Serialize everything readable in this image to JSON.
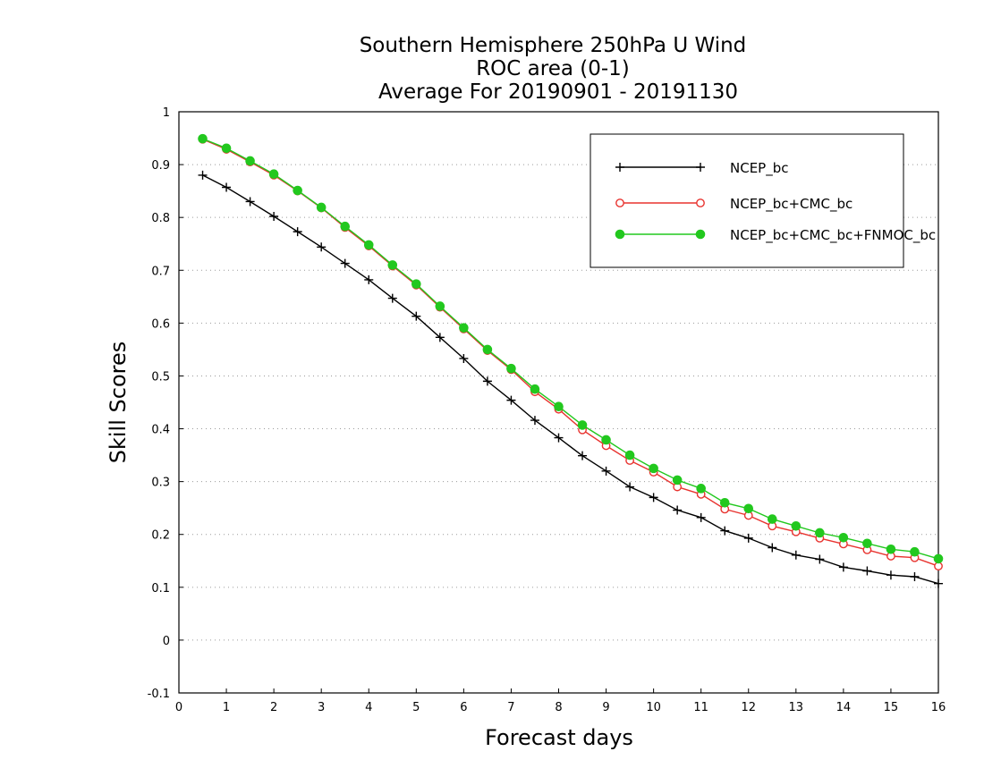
{
  "chart_data": {
    "type": "line",
    "title_lines": [
      "Southern Hemisphere 250hPa U Wind",
      "ROC area (0-1)",
      "Average For 20190901 - 20191130"
    ],
    "xlabel": "Forecast days",
    "ylabel": "Skill Scores",
    "xlim": [
      0,
      16
    ],
    "ylim": [
      -0.1,
      1
    ],
    "xticks": [
      "0",
      "1",
      "2",
      "3",
      "4",
      "5",
      "6",
      "7",
      "8",
      "9",
      "10",
      "11",
      "12",
      "13",
      "14",
      "15",
      "16"
    ],
    "yticks": [
      "-0.1",
      "0",
      "0.1",
      "0.2",
      "0.3",
      "0.4",
      "0.5",
      "0.6",
      "0.7",
      "0.8",
      "0.9",
      "1"
    ],
    "grid": "horizontal dotted",
    "legend_position": "top-right",
    "x": [
      0.5,
      1,
      1.5,
      2,
      2.5,
      3,
      3.5,
      4,
      4.5,
      5,
      5.5,
      6,
      6.5,
      7,
      7.5,
      8,
      8.5,
      9,
      9.5,
      10,
      10.5,
      11,
      11.5,
      12,
      12.5,
      13,
      13.5,
      14,
      14.5,
      15,
      15.5,
      16
    ],
    "series": [
      {
        "name": "NCEP_bc",
        "color": "#000000",
        "marker": "plus",
        "values": [
          0.88,
          0.857,
          0.83,
          0.802,
          0.773,
          0.744,
          0.713,
          0.682,
          0.647,
          0.613,
          0.573,
          0.533,
          0.49,
          0.454,
          0.416,
          0.383,
          0.349,
          0.32,
          0.29,
          0.27,
          0.246,
          0.232,
          0.207,
          0.193,
          0.175,
          0.161,
          0.153,
          0.138,
          0.131,
          0.123,
          0.12,
          0.107
        ]
      },
      {
        "name": "NCEP_bc+CMC_bc",
        "color": "#e8332f",
        "marker": "open-circle",
        "values": [
          0.948,
          0.929,
          0.905,
          0.88,
          0.85,
          0.818,
          0.781,
          0.746,
          0.708,
          0.672,
          0.63,
          0.589,
          0.548,
          0.512,
          0.47,
          0.437,
          0.398,
          0.368,
          0.34,
          0.318,
          0.29,
          0.276,
          0.248,
          0.236,
          0.216,
          0.205,
          0.193,
          0.182,
          0.171,
          0.159,
          0.156,
          0.14
        ]
      },
      {
        "name": "NCEP_bc+CMC_bc+FNMOC_bc",
        "color": "#22c81e",
        "marker": "filled-circle",
        "values": [
          0.949,
          0.931,
          0.907,
          0.882,
          0.851,
          0.819,
          0.783,
          0.748,
          0.71,
          0.674,
          0.632,
          0.591,
          0.55,
          0.514,
          0.475,
          0.442,
          0.407,
          0.379,
          0.35,
          0.325,
          0.303,
          0.287,
          0.26,
          0.249,
          0.229,
          0.216,
          0.203,
          0.194,
          0.183,
          0.172,
          0.167,
          0.154
        ]
      }
    ]
  }
}
